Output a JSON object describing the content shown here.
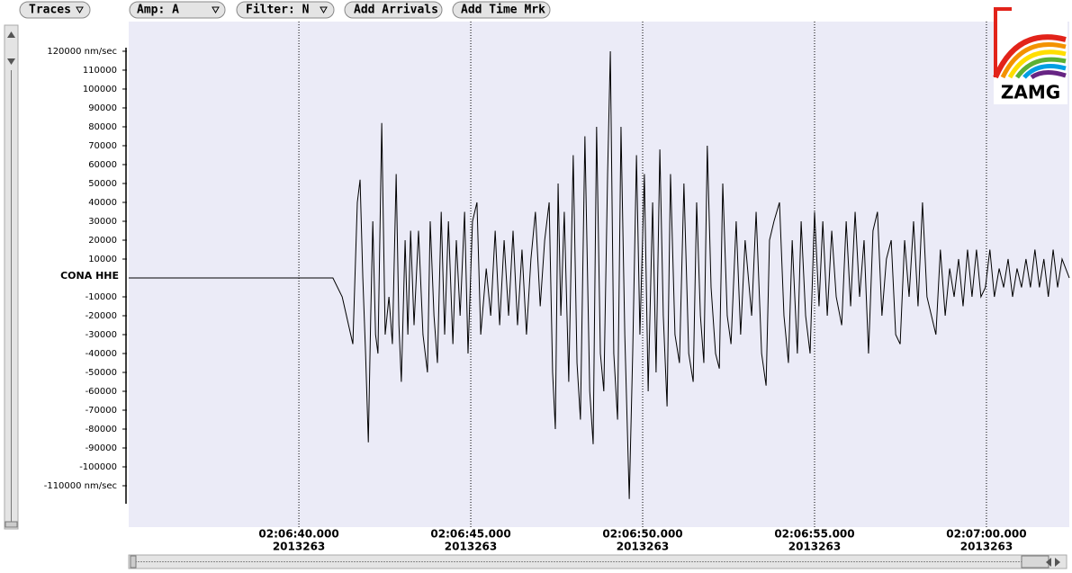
{
  "toolbar": {
    "buttons": [
      "Traces",
      "Amp: A",
      "Filter: N",
      "Add Arrivals",
      "Add Time Mrk"
    ]
  },
  "logo": "ZAMG",
  "chart_data": {
    "type": "line",
    "date": "2013263",
    "x": [
      7595.05,
      7600.99,
      7601.26,
      7601.57,
      7601.7,
      7601.78,
      7601.86,
      7601.94,
      7602.02,
      7602.09,
      7602.15,
      7602.23,
      7602.3,
      7602.41,
      7602.51,
      7602.62,
      7602.72,
      7602.83,
      7602.91,
      7602.98,
      7603.09,
      7603.17,
      7603.25,
      7603.35,
      7603.48,
      7603.61,
      7603.74,
      7603.82,
      7603.93,
      7604.03,
      7604.14,
      7604.24,
      7604.35,
      7604.48,
      7604.58,
      7604.69,
      7604.82,
      7604.92,
      7605.05,
      7605.18,
      7605.29,
      7605.45,
      7605.58,
      7605.71,
      7605.84,
      7605.97,
      7606.1,
      7606.23,
      7606.36,
      7606.49,
      7606.62,
      7606.75,
      7606.88,
      7607.02,
      7607.15,
      7607.28,
      7607.38,
      7607.46,
      7607.54,
      7607.62,
      7607.72,
      7607.85,
      7607.98,
      7608.09,
      7608.19,
      7608.32,
      7608.46,
      7608.56,
      7608.66,
      7608.77,
      7608.87,
      7608.98,
      7609.06,
      7609.16,
      7609.27,
      7609.37,
      7609.48,
      7609.61,
      7609.71,
      7609.82,
      7609.92,
      7610.05,
      7610.16,
      7610.29,
      7610.39,
      7610.5,
      7610.6,
      7610.71,
      7610.81,
      7610.94,
      7611.07,
      7611.2,
      7611.34,
      7611.47,
      7611.57,
      7611.68,
      7611.78,
      7611.88,
      7611.99,
      7612.12,
      7612.23,
      7612.33,
      7612.46,
      7612.57,
      7612.72,
      7612.85,
      7612.98,
      7613.17,
      7613.3,
      7613.46,
      7613.59,
      7613.69,
      7613.82,
      7613.98,
      7614.11,
      7614.24,
      7614.35,
      7614.5,
      7614.61,
      7614.74,
      7614.87,
      7615.0,
      7615.13,
      7615.24,
      7615.37,
      7615.5,
      7615.63,
      7615.79,
      7615.92,
      7616.05,
      7616.18,
      7616.31,
      7616.44,
      7616.57,
      7616.7,
      7616.83,
      7616.96,
      7617.09,
      7617.23,
      7617.36,
      7617.49,
      7617.62,
      7617.75,
      7617.88,
      7618.01,
      7618.14,
      7618.27,
      7618.4,
      7618.53,
      7618.66,
      7618.8,
      7618.93,
      7619.06,
      7619.19,
      7619.32,
      7619.45,
      7619.58,
      7619.71,
      7619.84,
      7619.97,
      7620.1,
      7620.23,
      7620.37,
      7620.5,
      7620.63,
      7620.76,
      7620.89,
      7621.02,
      7621.15,
      7621.28,
      7621.41,
      7621.54,
      7621.67,
      7621.8,
      7621.94,
      7622.07,
      7622.2,
      7622.41
    ],
    "series": [
      {
        "name": "CONA HHE",
        "color": "#000000",
        "values": [
          0,
          0,
          -10000,
          -35000,
          40000,
          52000,
          0,
          -40000,
          -87000,
          -20000,
          30000,
          -30000,
          -40000,
          82000,
          -30000,
          -10000,
          -35000,
          55000,
          -25000,
          -55000,
          20000,
          -30000,
          25000,
          -25000,
          25000,
          -30000,
          -50000,
          30000,
          -20000,
          -45000,
          35000,
          -30000,
          30000,
          -35000,
          20000,
          -20000,
          35000,
          -40000,
          30000,
          40000,
          -30000,
          5000,
          -20000,
          25000,
          -25000,
          20000,
          -20000,
          25000,
          -25000,
          15000,
          -30000,
          10000,
          35000,
          -15000,
          20000,
          40000,
          -50000,
          -80000,
          50000,
          -20000,
          35000,
          -55000,
          65000,
          -45000,
          -75000,
          75000,
          -60000,
          -88000,
          80000,
          -40000,
          -60000,
          55000,
          120000,
          -40000,
          -75000,
          80000,
          -30000,
          -117000,
          -40000,
          65000,
          -30000,
          55000,
          -60000,
          40000,
          -50000,
          68000,
          -20000,
          -68000,
          55000,
          -30000,
          -45000,
          50000,
          -40000,
          -55000,
          40000,
          -20000,
          -45000,
          70000,
          -5000,
          -40000,
          -48000,
          50000,
          -20000,
          -35000,
          30000,
          -30000,
          20000,
          -20000,
          35000,
          -40000,
          -57000,
          20000,
          30000,
          40000,
          -20000,
          -45000,
          20000,
          -40000,
          30000,
          -20000,
          -40000,
          35000,
          -15000,
          30000,
          -20000,
          25000,
          -10000,
          -25000,
          30000,
          -15000,
          35000,
          -10000,
          20000,
          -40000,
          25000,
          35000,
          -20000,
          10000,
          20000,
          -30000,
          -35000,
          20000,
          -10000,
          30000,
          -15000,
          40000,
          -10000,
          -20000,
          -30000,
          15000,
          -20000,
          5000,
          -10000,
          10000,
          -15000,
          15000,
          -10000,
          15000,
          -10000,
          -5000,
          15000,
          -10000,
          5000,
          -5000,
          10000,
          -10000,
          5000,
          -5000,
          10000,
          -5000,
          15000,
          -5000,
          10000,
          -10000,
          15000,
          -5000,
          10000,
          0
        ]
      }
    ],
    "xlim": [
      7595.05,
      7622.41
    ],
    "xticks": [
      {
        "value": 7600,
        "label": "02:06:40.000"
      },
      {
        "value": 7605,
        "label": "02:06:45.000"
      },
      {
        "value": 7610,
        "label": "02:06:50.000"
      },
      {
        "value": 7615,
        "label": "02:06:55.000"
      },
      {
        "value": 7620,
        "label": "02:07:00.000"
      }
    ],
    "ylim": [
      -131900,
      135700
    ],
    "yticks": [
      {
        "value": 120000,
        "label": "120000 nm/sec"
      },
      110000,
      100000,
      90000,
      80000,
      70000,
      60000,
      50000,
      40000,
      30000,
      20000,
      10000,
      -10000,
      -20000,
      -30000,
      -40000,
      -50000,
      -60000,
      -70000,
      -80000,
      -90000,
      -100000,
      {
        "value": -110000,
        "label": "-110000 nm/sec"
      }
    ],
    "grid": true
  }
}
